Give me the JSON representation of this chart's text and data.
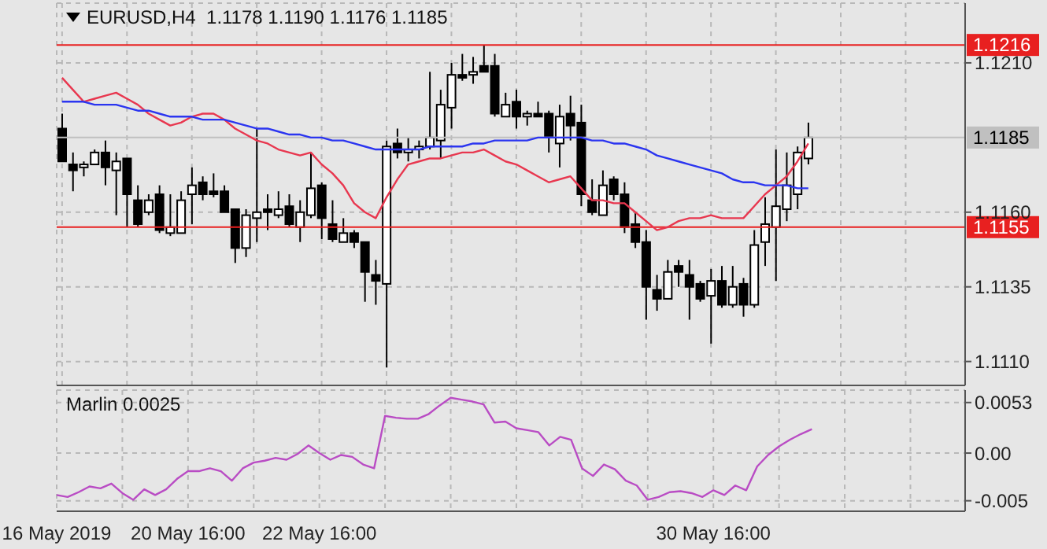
{
  "chart_data": [
    {
      "type": "candlestick",
      "title": "EURUSD,H4  1.1178 1.1190 1.1176 1.1185",
      "tick_labels": "y",
      "grid": true,
      "categories": [
        null,
        null,
        null,
        null,
        null,
        null,
        null,
        null,
        null,
        null,
        null,
        null,
        null,
        null,
        null,
        null,
        null,
        null,
        null,
        null,
        null,
        null,
        null,
        null,
        null,
        null,
        null,
        null,
        null,
        null,
        null,
        null,
        null,
        null,
        null,
        null,
        null,
        null,
        null,
        null,
        null,
        null,
        null,
        null,
        null,
        null,
        null,
        null,
        null,
        null,
        null,
        null,
        null,
        null,
        null,
        null,
        null,
        null,
        null,
        null,
        null,
        null,
        null,
        null,
        null,
        null,
        null,
        null,
        null,
        null,
        null,
        null,
        null,
        null,
        null,
        null,
        null,
        null,
        null,
        null,
        null,
        null,
        null,
        null
      ],
      "ohlc": [
        [
          1.1188,
          1.1193,
          1.1177,
          1.1177
        ],
        [
          1.1176,
          1.118,
          1.1167,
          1.1174
        ],
        [
          1.1175,
          1.1177,
          1.1172,
          1.1176
        ],
        [
          1.1176,
          1.1181,
          1.1176,
          1.118
        ],
        [
          1.118,
          1.1184,
          1.1169,
          1.1175
        ],
        [
          1.1174,
          1.118,
          1.1159,
          1.1177
        ],
        [
          1.1178,
          1.1178,
          1.1155,
          1.1166
        ],
        [
          1.1164,
          1.1169,
          1.1155,
          1.1156
        ],
        [
          1.116,
          1.1166,
          1.1159,
          1.1164
        ],
        [
          1.1166,
          1.1169,
          1.1153,
          1.1154
        ],
        [
          1.1153,
          1.1166,
          1.1152,
          1.1155
        ],
        [
          1.1153,
          1.1167,
          1.1153,
          1.1164
        ],
        [
          1.1166,
          1.1175,
          1.1156,
          1.1169
        ],
        [
          1.117,
          1.1172,
          1.1164,
          1.1166
        ],
        [
          1.1167,
          1.1173,
          1.1165,
          1.1166
        ],
        [
          1.1167,
          1.1169,
          1.116,
          1.116
        ],
        [
          1.1161,
          1.1161,
          1.1143,
          1.1148
        ],
        [
          1.1148,
          1.1161,
          1.1145,
          1.1159
        ],
        [
          1.1158,
          1.1188,
          1.115,
          1.116
        ],
        [
          1.1161,
          1.1166,
          1.1154,
          1.116
        ],
        [
          1.1159,
          1.1167,
          1.1158,
          1.1161
        ],
        [
          1.1162,
          1.1166,
          1.1155,
          1.1156
        ],
        [
          1.1155,
          1.1164,
          1.115,
          1.116
        ],
        [
          1.1159,
          1.118,
          1.1158,
          1.1168
        ],
        [
          1.1169,
          1.117,
          1.1151,
          1.1158
        ],
        [
          1.1156,
          1.1164,
          1.115,
          1.1151
        ],
        [
          1.115,
          1.1158,
          1.115,
          1.1153
        ],
        [
          1.1153,
          1.1154,
          1.1148,
          1.115
        ],
        [
          1.115,
          1.115,
          1.113,
          1.114
        ],
        [
          1.1139,
          1.1144,
          1.1129,
          1.1137
        ],
        [
          1.1136,
          1.1184,
          1.1108,
          1.1182
        ],
        [
          1.1183,
          1.1188,
          1.1178,
          1.118
        ],
        [
          1.118,
          1.1185,
          1.1177,
          1.1181
        ],
        [
          1.1181,
          1.1184,
          1.1178,
          1.1182
        ],
        [
          1.1182,
          1.1207,
          1.1181,
          1.1185
        ],
        [
          1.1184,
          1.1201,
          1.1178,
          1.1196
        ],
        [
          1.1195,
          1.121,
          1.1188,
          1.1206
        ],
        [
          1.1206,
          1.1213,
          1.1204,
          1.1205
        ],
        [
          1.1206,
          1.1212,
          1.1203,
          1.1207
        ],
        [
          1.1209,
          1.1216,
          1.1207,
          1.1207
        ],
        [
          1.1209,
          1.1213,
          1.1192,
          1.1193
        ],
        [
          1.1192,
          1.12,
          1.1192,
          1.1196
        ],
        [
          1.1197,
          1.1201,
          1.1188,
          1.1192
        ],
        [
          1.1192,
          1.1194,
          1.1189,
          1.1193
        ],
        [
          1.1193,
          1.1197,
          1.1192,
          1.1192
        ],
        [
          1.1193,
          1.1194,
          1.118,
          1.1185
        ],
        [
          1.1183,
          1.1196,
          1.1175,
          1.1192
        ],
        [
          1.1193,
          1.1199,
          1.1184,
          1.1189
        ],
        [
          1.119,
          1.1196,
          1.1162,
          1.1166
        ],
        [
          1.1164,
          1.1171,
          1.1159,
          1.116
        ],
        [
          1.1159,
          1.1174,
          1.1159,
          1.1169
        ],
        [
          1.1171,
          1.1172,
          1.1164,
          1.1166
        ],
        [
          1.1166,
          1.117,
          1.1153,
          1.1155
        ],
        [
          1.1156,
          1.116,
          1.1148,
          1.115
        ],
        [
          1.115,
          1.1154,
          1.1124,
          1.1135
        ],
        [
          1.1134,
          1.1139,
          1.1127,
          1.1131
        ],
        [
          1.1131,
          1.1144,
          1.1131,
          1.114
        ],
        [
          1.1142,
          1.1144,
          1.1135,
          1.114
        ],
        [
          1.1139,
          1.1144,
          1.1124,
          1.1135
        ],
        [
          1.1136,
          1.1137,
          1.113,
          1.1131
        ],
        [
          1.1132,
          1.1141,
          1.1116,
          1.1137
        ],
        [
          1.1137,
          1.1142,
          1.1128,
          1.1129
        ],
        [
          1.1129,
          1.1142,
          1.1128,
          1.1135
        ],
        [
          1.1136,
          1.1138,
          1.1125,
          1.1129
        ],
        [
          1.1129,
          1.1154,
          1.1128,
          1.1149
        ],
        [
          1.115,
          1.1165,
          1.1142,
          1.1156
        ],
        [
          1.1155,
          1.1181,
          1.1137,
          1.1162
        ],
        [
          1.1161,
          1.118,
          1.1157,
          1.1169
        ],
        [
          1.1166,
          1.1182,
          1.1161,
          1.118
        ],
        [
          1.1178,
          1.119,
          1.1176,
          1.1185
        ],
        null,
        null,
        null,
        null,
        null,
        null,
        null,
        null,
        null,
        null,
        null,
        null,
        null,
        null
      ],
      "series": [
        {
          "type": "line",
          "color": "#e8374f",
          "values": [
            1.1205,
            1.1201,
            1.1197,
            1.1198,
            1.1199,
            1.12,
            1.1198,
            1.1196,
            1.1193,
            1.1191,
            1.1189,
            1.119,
            1.1192,
            1.1193,
            1.1193,
            1.1191,
            1.1188,
            1.1186,
            1.1184,
            1.1183,
            1.1181,
            1.118,
            1.1179,
            1.118,
            1.1176,
            1.1173,
            1.1169,
            1.1163,
            1.116,
            1.1158,
            1.1165,
            1.1171,
            1.1176,
            1.1177,
            1.1178,
            1.1178,
            1.1179,
            1.118,
            1.118,
            1.1181,
            1.1179,
            1.1177,
            1.1176,
            1.1174,
            1.1172,
            1.117,
            1.1171,
            1.1172,
            1.1168,
            1.1164,
            1.1164,
            1.1163,
            1.1163,
            1.116,
            1.1157,
            1.1154,
            1.1155,
            1.1157,
            1.1158,
            1.1158,
            1.1159,
            1.1158,
            1.1158,
            1.1158,
            1.1162,
            1.1166,
            1.1169,
            1.1172,
            1.1177,
            1.1183,
            null,
            null,
            null,
            null,
            null,
            null,
            null,
            null,
            null,
            null,
            null,
            null,
            null,
            null
          ]
        },
        {
          "type": "line",
          "color": "#2b35f0",
          "values": [
            1.1197,
            1.1197,
            1.1197,
            1.1196,
            1.1196,
            1.1196,
            1.1195,
            1.1194,
            1.1194,
            1.1193,
            1.1192,
            1.1192,
            1.1192,
            1.1191,
            1.1191,
            1.1191,
            1.119,
            1.1189,
            1.1188,
            1.1188,
            1.1187,
            1.1186,
            1.1186,
            1.1185,
            1.1185,
            1.1184,
            1.1184,
            1.1183,
            1.1182,
            1.1181,
            1.1181,
            1.1181,
            1.1181,
            1.1181,
            1.1182,
            1.1182,
            1.1182,
            1.1182,
            1.1183,
            1.1183,
            1.1184,
            1.1184,
            1.1184,
            1.1184,
            1.1185,
            1.1185,
            1.1185,
            1.1185,
            1.1185,
            1.1184,
            1.1184,
            1.1183,
            1.1183,
            1.1182,
            1.1181,
            1.1179,
            1.1178,
            1.1177,
            1.1176,
            1.1175,
            1.1174,
            1.1173,
            1.1171,
            1.117,
            1.117,
            1.1169,
            1.1169,
            1.1169,
            1.1168,
            1.1168,
            null,
            null,
            null,
            null,
            null,
            null,
            null,
            null,
            null,
            null,
            null,
            null,
            null,
            null
          ]
        }
      ],
      "ylim": [
        1.1102,
        1.123
      ],
      "yticks": [
        {
          "value": 1.111,
          "label": "1.1110"
        },
        1.1135,
        {
          "value": 1.116,
          "label": "1.1160"
        },
        {
          "value": 1.121,
          "label": "1.1210"
        }
      ],
      "ref_lines": [
        {
          "axis": "y",
          "value": 1.1216,
          "label": "1.1216",
          "color": "#e82020"
        },
        {
          "axis": "y",
          "value": 1.1155,
          "label": "1.1155",
          "color": "#e82020"
        },
        {
          "axis": "y",
          "value": 1.1185,
          "label": "1.1185",
          "color": "#c0c0c0"
        }
      ]
    },
    {
      "type": "line",
      "title": "Marlin 0.0025",
      "grid": true,
      "categories": [
        "16 May 2019",
        null,
        null,
        null,
        null,
        null,
        null,
        null,
        null,
        null,
        null,
        null,
        "20 May 16:00",
        null,
        null,
        null,
        null,
        null,
        null,
        null,
        null,
        null,
        null,
        null,
        "22 May 16:00",
        null,
        null,
        null,
        null,
        null,
        null,
        null,
        null,
        null,
        null,
        null,
        null,
        null,
        null,
        null,
        null,
        null,
        null,
        null,
        null,
        null,
        null,
        null,
        null,
        null,
        null,
        null,
        null,
        null,
        null,
        null,
        null,
        null,
        null,
        null,
        "30 May 16:00",
        null,
        null,
        null,
        null,
        null,
        null,
        null,
        null,
        null,
        null,
        null,
        null,
        null,
        null,
        null,
        null,
        null,
        null,
        null,
        null,
        null,
        null,
        null
      ],
      "series": [
        {
          "color": "#b94cc4",
          "values": [
            -0.0044,
            -0.0046,
            -0.0041,
            -0.0035,
            -0.0037,
            -0.0032,
            -0.0042,
            -0.0049,
            -0.0038,
            -0.0044,
            -0.0038,
            -0.0027,
            -0.0019,
            -0.0019,
            -0.0016,
            -0.0019,
            -0.0029,
            -0.0016,
            -0.001,
            -0.0008,
            -0.0005,
            -0.0007,
            -0.0001,
            0.0008,
            0,
            -0.0007,
            -0.0002,
            -0.0004,
            -0.0012,
            -0.0016,
            0.0039,
            0.0037,
            0.0036,
            0.0036,
            0.0041,
            0.005,
            0.0058,
            0.0056,
            0.0054,
            0.0051,
            0.0032,
            0.0033,
            0.0026,
            0.0024,
            0.0022,
            0.0008,
            0.0017,
            0.0014,
            -0.0016,
            -0.0024,
            -0.0012,
            -0.0017,
            -0.0029,
            -0.0034,
            -0.0049,
            -0.0046,
            -0.0041,
            -0.004,
            -0.0042,
            -0.0046,
            -0.0039,
            -0.0044,
            -0.0034,
            -0.0039,
            -0.0014,
            -0.0002,
            0.0007,
            0.0014,
            0.002,
            0.0025,
            null,
            null,
            null,
            null,
            null,
            null,
            null,
            null,
            null,
            null,
            null,
            null,
            null,
            null
          ]
        }
      ],
      "ylim": [
        -0.0061,
        0.0066
      ],
      "yticks": [
        0.0053,
        {
          "value": 0,
          "label": "0.00"
        },
        -0.005
      ]
    }
  ]
}
